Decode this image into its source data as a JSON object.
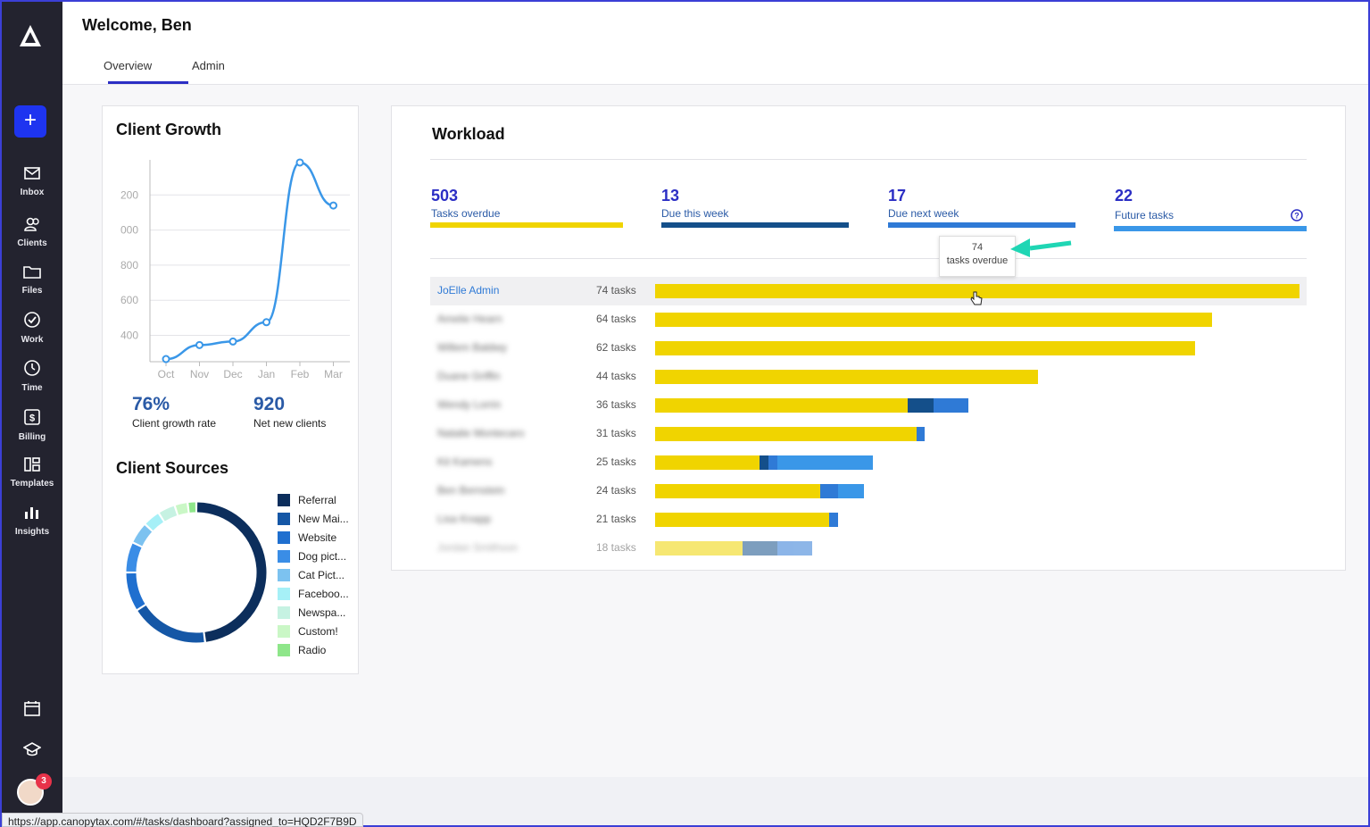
{
  "sidebar": {
    "items": [
      {
        "label": "Inbox",
        "icon": "mail-icon"
      },
      {
        "label": "Clients",
        "icon": "clients-icon"
      },
      {
        "label": "Files",
        "icon": "folder-icon"
      },
      {
        "label": "Work",
        "icon": "check-circle-icon"
      },
      {
        "label": "Time",
        "icon": "timer-icon"
      },
      {
        "label": "Billing",
        "icon": "billing-icon"
      },
      {
        "label": "Templates",
        "icon": "templates-icon"
      },
      {
        "label": "Insights",
        "icon": "bar-chart-icon"
      }
    ],
    "add_label": "+",
    "avatar_badge": "3"
  },
  "header": {
    "welcome": "Welcome, Ben",
    "tabs": [
      {
        "label": "Overview"
      },
      {
        "label": "Admin"
      }
    ]
  },
  "client_growth": {
    "title": "Client Growth",
    "rate_value": "76%",
    "rate_label": "Client growth rate",
    "net_value": "920",
    "net_label": "Net new clients"
  },
  "client_sources": {
    "title": "Client Sources",
    "legend": [
      {
        "label": "Referral",
        "color": "#0c2e5c"
      },
      {
        "label": "New Mai...",
        "color": "#1557a6"
      },
      {
        "label": "Website",
        "color": "#1f6fcf"
      },
      {
        "label": "Dog pict...",
        "color": "#3a8de6"
      },
      {
        "label": "Cat Pict...",
        "color": "#7cc2f0"
      },
      {
        "label": "Faceboo...",
        "color": "#a6f0f7"
      },
      {
        "label": "Newspa...",
        "color": "#c6f2e2"
      },
      {
        "label": "Custom!",
        "color": "#caf7c6"
      },
      {
        "label": "Radio",
        "color": "#8ee68a"
      }
    ]
  },
  "chart_data": [
    {
      "type": "line",
      "title": "Client Growth",
      "categories": [
        "Oct",
        "Nov",
        "Dec",
        "Jan",
        "Feb",
        "Mar"
      ],
      "ytick_labels": [
        "400",
        "600",
        "800",
        "000",
        "200"
      ],
      "values": [
        265,
        345,
        365,
        475,
        1385,
        1140
      ],
      "ylim": [
        250,
        1400
      ],
      "grid": true,
      "color": "#3a97e8"
    },
    {
      "type": "pie",
      "title": "Client Sources",
      "categories": [
        "Referral",
        "New Mai...",
        "Website",
        "Dog pict...",
        "Cat Pict...",
        "Faceboo...",
        "Newspa...",
        "Custom!",
        "Radio"
      ],
      "values": [
        48,
        18,
        9,
        7,
        5,
        4,
        4,
        3,
        2
      ]
    }
  ],
  "workload": {
    "title": "Workload",
    "stats": [
      {
        "value": "503",
        "label": "Tasks overdue",
        "color": "#f0d400"
      },
      {
        "value": "13",
        "label": "Due this week",
        "color": "#144f8a"
      },
      {
        "value": "17",
        "label": "Due next week",
        "color": "#2f7ad6"
      },
      {
        "value": "22",
        "label": "Future tasks",
        "color": "#3a97e8"
      }
    ],
    "tooltip": {
      "value": "74",
      "label": "tasks overdue"
    },
    "rows": [
      {
        "name": "JoElle Admin",
        "count": "74 tasks",
        "overdue": 74,
        "this_week": 0,
        "next_week": 0,
        "future": 0
      },
      {
        "name": "Amelie Hearn",
        "count": "64 tasks",
        "overdue": 64,
        "this_week": 0,
        "next_week": 0,
        "future": 0
      },
      {
        "name": "Willem Baldwy",
        "count": "62 tasks",
        "overdue": 62,
        "this_week": 0,
        "next_week": 0,
        "future": 0
      },
      {
        "name": "Duane Griffin",
        "count": "44 tasks",
        "overdue": 44,
        "this_week": 0,
        "next_week": 0,
        "future": 0
      },
      {
        "name": "Wendy Lorrin",
        "count": "36 tasks",
        "overdue": 29,
        "this_week": 3,
        "next_week": 4,
        "future": 0
      },
      {
        "name": "Natalie Montecaro",
        "count": "31 tasks",
        "overdue": 30,
        "this_week": 0,
        "next_week": 1,
        "future": 0
      },
      {
        "name": "Kit Kamens",
        "count": "25 tasks",
        "overdue": 12,
        "this_week": 1,
        "next_week": 1,
        "future": 11
      },
      {
        "name": "Ben Bernstein",
        "count": "24 tasks",
        "overdue": 19,
        "this_week": 0,
        "next_week": 2,
        "future": 3
      },
      {
        "name": "Lisa Knapp",
        "count": "21 tasks",
        "overdue": 20,
        "this_week": 0,
        "next_week": 1,
        "future": 0
      },
      {
        "name": "Jordan Smithson",
        "count": "18 tasks",
        "overdue": 10,
        "this_week": 4,
        "next_week": 4,
        "future": 0
      }
    ]
  },
  "status_url": "https://app.canopytax.com/#/tasks/dashboard?assigned_to=HQD2F7B9D"
}
